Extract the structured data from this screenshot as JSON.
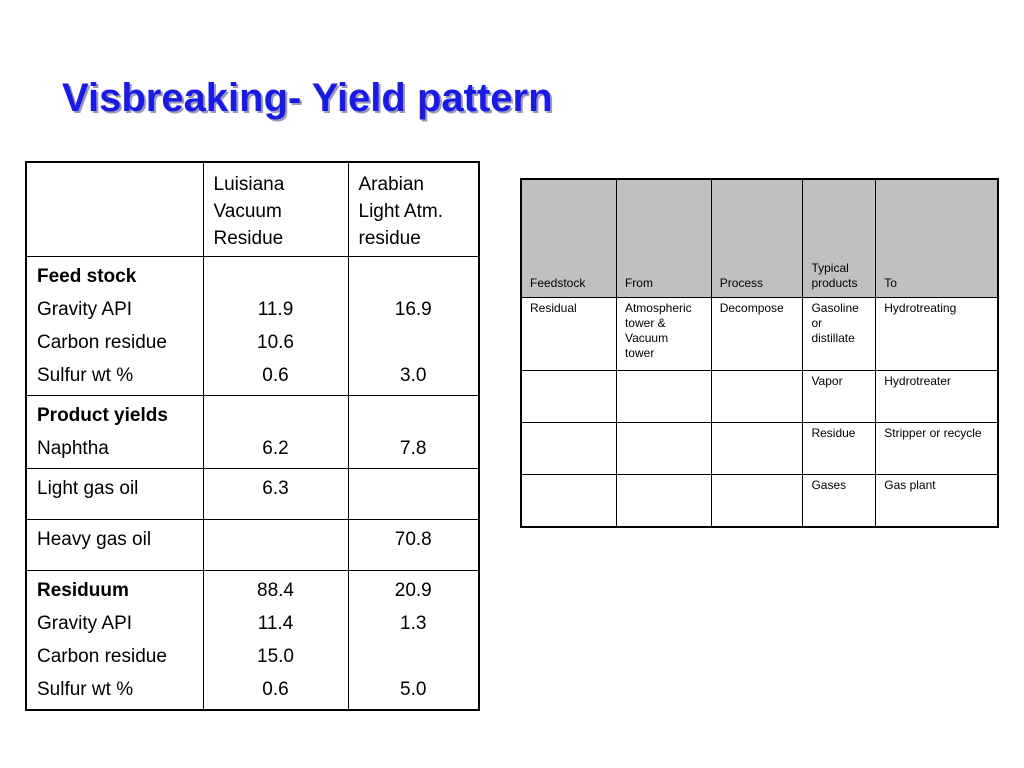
{
  "title": "Visbreaking- Yield pattern",
  "yield_table": {
    "header": {
      "col1": "",
      "col2": [
        "Luisiana",
        "Vacuum",
        "Residue"
      ],
      "col3": [
        "Arabian",
        "Light Atm.",
        "residue"
      ]
    },
    "feed_stock": {
      "heading": "Feed stock",
      "rows": [
        {
          "label": "Gravity API",
          "v1": "11.9",
          "v2": "16.9"
        },
        {
          "label": "Carbon residue",
          "v1": "10.6",
          "v2": ""
        },
        {
          "label": "Sulfur  wt %",
          "v1": "0.6",
          "v2": "3.0"
        }
      ]
    },
    "product_yields": {
      "heading": "Product yields",
      "rows": [
        {
          "label": "Naphtha",
          "v1": "6.2",
          "v2": "7.8"
        }
      ]
    },
    "light_gas_oil": {
      "label": "Light gas oil",
      "v1": "6.3",
      "v2": ""
    },
    "heavy_gas_oil": {
      "label": "Heavy gas oil",
      "v1": "",
      "v2": "70.8"
    },
    "residuum": {
      "heading": "Residuum",
      "heading_v1": "88.4",
      "heading_v2": "20.9",
      "rows": [
        {
          "label": "Gravity API",
          "v1": "11.4",
          "v2": "1.3"
        },
        {
          "label": "Carbon residue",
          "v1": "15.0",
          "v2": ""
        },
        {
          "label": "Sulfur wt %",
          "v1": "0.6",
          "v2": "5.0"
        }
      ]
    }
  },
  "process_table": {
    "headers": {
      "feedstock": "Feedstock",
      "from": "From",
      "process": "Process",
      "typical_products": [
        "Typical",
        "products"
      ],
      "to": "To"
    },
    "rows": [
      {
        "feedstock": "Residual",
        "from": [
          "Atmospheric",
          "tower &",
          "Vacuum",
          "tower"
        ],
        "process": "Decompose",
        "products": [
          "Gasoline",
          "or",
          "distillate"
        ],
        "to": "Hydrotreating"
      },
      {
        "feedstock": "",
        "from": [],
        "process": "",
        "products": [
          "Vapor"
        ],
        "to": "Hydrotreater"
      },
      {
        "feedstock": "",
        "from": [],
        "process": "",
        "products": [
          "Residue"
        ],
        "to": "Stripper or recycle"
      },
      {
        "feedstock": "",
        "from": [],
        "process": "",
        "products": [
          "Gases"
        ],
        "to": "Gas plant"
      }
    ]
  },
  "colors": {
    "title": "#1a1ae6",
    "header_fill": "#c0c0c0"
  }
}
